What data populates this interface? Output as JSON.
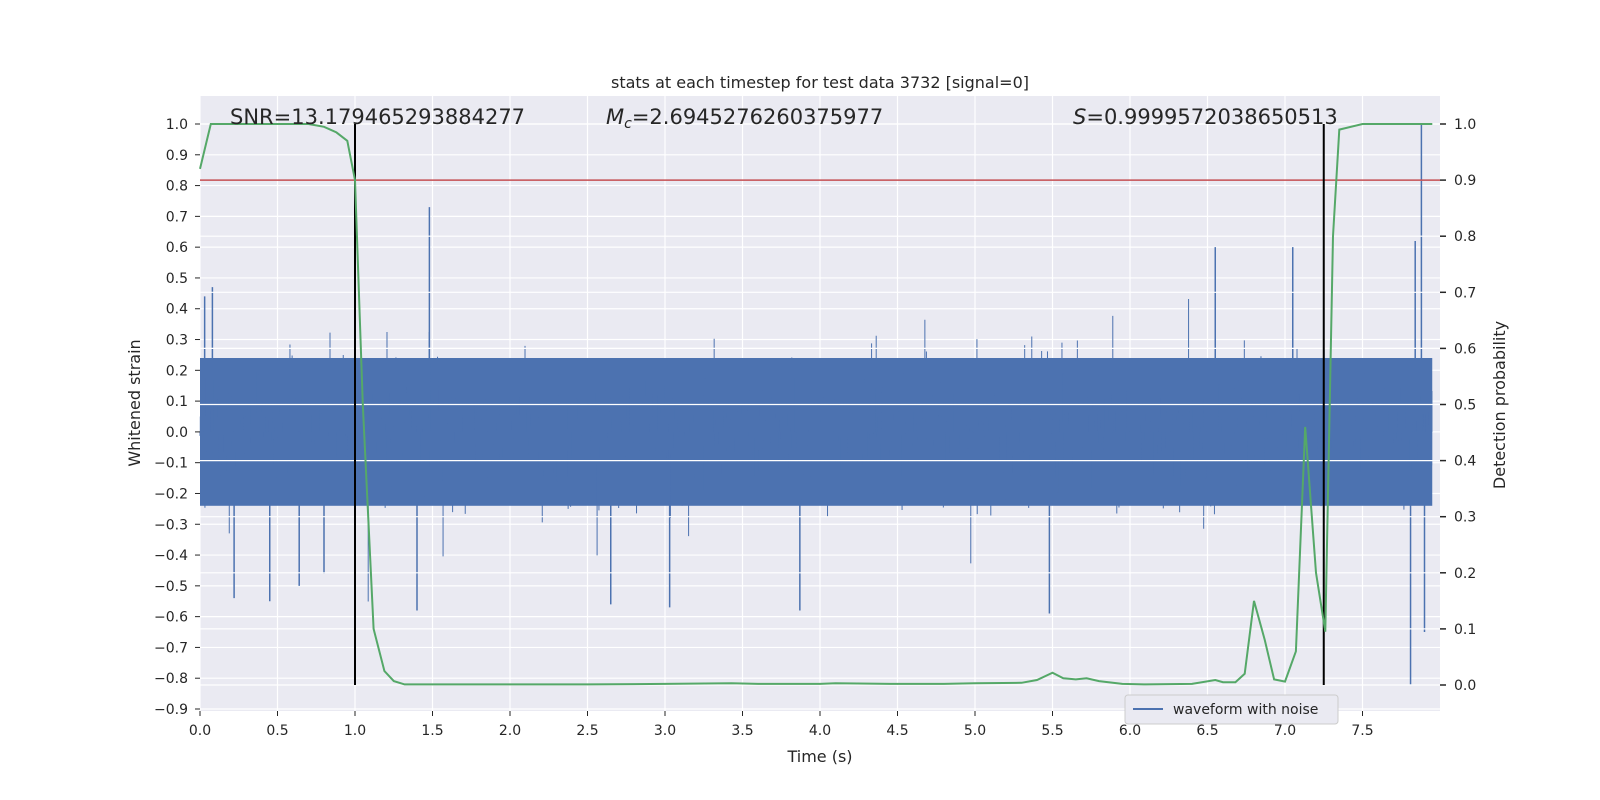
{
  "chart_data": {
    "type": "line",
    "title": "stats at each timestep for test data 3732 [signal=0]",
    "xlabel": "Time (s)",
    "ylabel": "Whitened strain",
    "y2label": "Detection probability",
    "xlim": [
      0.0,
      8.0
    ],
    "ylim": [
      -0.9,
      1.0
    ],
    "y2lim": [
      0.0,
      1.0
    ],
    "grid": true,
    "xticks": [
      "0.0",
      "0.5",
      "1.0",
      "1.5",
      "2.0",
      "2.5",
      "3.0",
      "3.5",
      "4.0",
      "4.5",
      "5.0",
      "5.5",
      "6.0",
      "6.5",
      "7.0",
      "7.5"
    ],
    "yticks": [
      "1.0",
      "0.9",
      "0.8",
      "0.7",
      "0.6",
      "0.5",
      "0.4",
      "0.3",
      "0.2",
      "0.1",
      "0.0",
      "−0.1",
      "−0.2",
      "−0.3",
      "−0.4",
      "−0.5",
      "−0.6",
      "−0.7",
      "−0.8",
      "−0.9"
    ],
    "y2ticks": [
      "1.0",
      "0.9",
      "0.8",
      "0.7",
      "0.6",
      "0.5",
      "0.4",
      "0.3",
      "0.2",
      "0.1",
      "0.0"
    ],
    "annotations": {
      "snr": "SNR=13.179465293884277",
      "mc_symbol": "M",
      "mc_sub": "c",
      "mc_value": "=2.6945276260375977",
      "s_symbol": "S",
      "s_value": "=0.9999572038650513"
    },
    "legend": {
      "placement": "lower-right",
      "entries": [
        "waveform with noise"
      ]
    },
    "threshold_y2": 0.9,
    "vertical_markers_x": [
      1.0,
      7.25
    ],
    "series": [
      {
        "name": "waveform with noise",
        "axis": "left",
        "color": "#4c72b0",
        "description_points": "dense noise",
        "spikes": [
          {
            "x": 0.03,
            "y": 0.44
          },
          {
            "x": 0.08,
            "y": 0.47
          },
          {
            "x": 0.22,
            "y": -0.54
          },
          {
            "x": 0.45,
            "y": -0.55
          },
          {
            "x": 0.64,
            "y": -0.5
          },
          {
            "x": 0.8,
            "y": -0.46
          },
          {
            "x": 1.48,
            "y": 0.73
          },
          {
            "x": 1.4,
            "y": -0.58
          },
          {
            "x": 2.65,
            "y": -0.56
          },
          {
            "x": 3.03,
            "y": -0.57
          },
          {
            "x": 3.87,
            "y": -0.58
          },
          {
            "x": 5.48,
            "y": -0.59
          },
          {
            "x": 6.55,
            "y": 0.6
          },
          {
            "x": 7.05,
            "y": 0.6
          },
          {
            "x": 7.81,
            "y": -0.82
          },
          {
            "x": 7.88,
            "y": 1.0
          },
          {
            "x": 7.84,
            "y": 0.62
          },
          {
            "x": 7.9,
            "y": -0.65
          }
        ]
      },
      {
        "name": "",
        "axis": "right",
        "color": "#55a868",
        "x": [
          0.0,
          0.07,
          0.15,
          0.3,
          0.5,
          0.7,
          0.8,
          0.88,
          0.95,
          1.0,
          1.05,
          1.12,
          1.19,
          1.25,
          1.32,
          1.4,
          1.6,
          1.8,
          2.0,
          2.5,
          3.0,
          3.43,
          3.6,
          4.0,
          4.1,
          4.5,
          4.8,
          5.0,
          5.3,
          5.4,
          5.5,
          5.57,
          5.65,
          5.72,
          5.8,
          5.95,
          6.1,
          6.4,
          6.55,
          6.6,
          6.68,
          6.74,
          6.8,
          6.87,
          6.93,
          7.0,
          7.07,
          7.13,
          7.2,
          7.26,
          7.31,
          7.35,
          7.5,
          7.7,
          7.95
        ],
        "y": [
          0.92,
          1.0,
          1.0,
          1.0,
          1.0,
          1.0,
          0.995,
          0.985,
          0.97,
          0.9,
          0.5,
          0.1,
          0.025,
          0.007,
          0.001,
          0.001,
          0.001,
          0.001,
          0.001,
          0.001,
          0.002,
          0.003,
          0.002,
          0.002,
          0.003,
          0.002,
          0.002,
          0.003,
          0.004,
          0.009,
          0.022,
          0.012,
          0.01,
          0.012,
          0.007,
          0.002,
          0.001,
          0.002,
          0.009,
          0.005,
          0.005,
          0.02,
          0.15,
          0.08,
          0.01,
          0.006,
          0.06,
          0.46,
          0.2,
          0.095,
          0.8,
          0.99,
          1.0,
          1.0,
          1.0
        ]
      }
    ]
  }
}
